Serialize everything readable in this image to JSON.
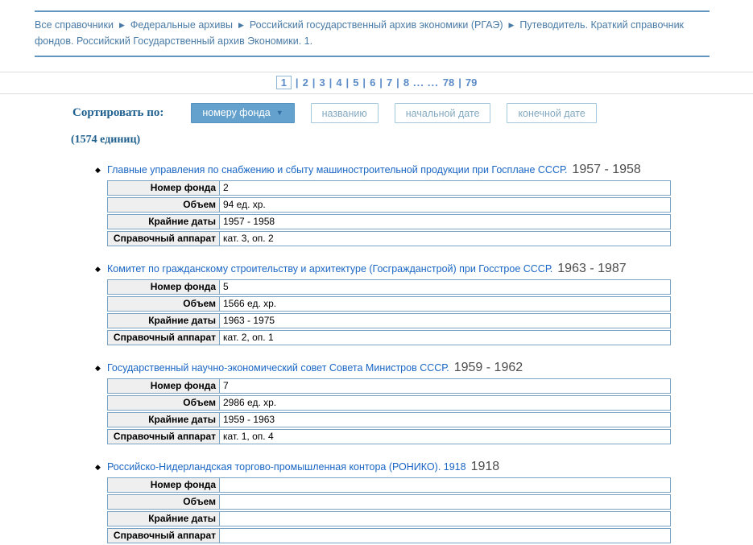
{
  "breadcrumb": {
    "separator": "▶",
    "items": [
      "Все справочники",
      "Федеральные архивы",
      "Российский государственный архив экономики (РГАЭ)",
      "Путеводитель. Краткий справочник фондов. Российский Государственный архив Экономики. 1."
    ]
  },
  "pagination": {
    "separator": "|",
    "tokens": [
      {
        "type": "page",
        "label": "1",
        "current": true
      },
      {
        "type": "sep"
      },
      {
        "type": "page",
        "label": "2"
      },
      {
        "type": "sep"
      },
      {
        "type": "page",
        "label": "3"
      },
      {
        "type": "sep"
      },
      {
        "type": "page",
        "label": "4"
      },
      {
        "type": "sep"
      },
      {
        "type": "page",
        "label": "5"
      },
      {
        "type": "sep"
      },
      {
        "type": "page",
        "label": "6"
      },
      {
        "type": "sep"
      },
      {
        "type": "page",
        "label": "7"
      },
      {
        "type": "sep"
      },
      {
        "type": "page",
        "label": "8"
      },
      {
        "type": "dots",
        "label": "..."
      },
      {
        "type": "dots",
        "label": "..."
      },
      {
        "type": "page",
        "label": "78"
      },
      {
        "type": "sep"
      },
      {
        "type": "page",
        "label": "79"
      }
    ]
  },
  "sort": {
    "label": "Сортировать по:",
    "count": "(1574 единиц)",
    "buttons": [
      {
        "label": "номеру фонда",
        "active": true,
        "arrow": "▼"
      },
      {
        "label": "названию",
        "active": false
      },
      {
        "label": "начальной дате",
        "active": false
      },
      {
        "label": "конечной дате",
        "active": false
      }
    ]
  },
  "field_labels": [
    "Номер фонда",
    "Объем",
    "Крайние даты",
    "Справочный аппарат"
  ],
  "entries": [
    {
      "title": "Главные управления по снабжению и сбыту машиностроительной продукции при Госплане СССР.",
      "date_range": "1957 - 1958",
      "values": [
        "2",
        "94 ед. хр.",
        "1957 - 1958",
        "кат. 3, оп. 2"
      ]
    },
    {
      "title": "Комитет по гражданскому строительству и архитектуре (Госгражданстрой) при Госстрое СССР.",
      "date_range": "1963 - 1987",
      "values": [
        "5",
        "1566 ед. хр.",
        "1963 - 1975",
        "кат. 2, оп. 1"
      ]
    },
    {
      "title": "Государственный научно-экономический совет Совета Министров СССР.",
      "date_range": "1959 - 1962",
      "values": [
        "7",
        "2986 ед. хр.",
        "1959 - 1963",
        "кат. 1, оп. 4"
      ]
    },
    {
      "title": "Российско-Нидерландская торгово-промышленная контора (РОНИКО). 1918",
      "date_range": "1918",
      "values": [
        "",
        "",
        "",
        ""
      ]
    }
  ],
  "colors": {
    "rule-blue": "#6296c2",
    "breadcrumb-blue": "#4a7ba6",
    "link-blue": "#1a66c4",
    "pagination-blue": "#5b8cc7",
    "btn-active-bg": "#64a1cc",
    "btn-border": "#a5c8dd",
    "btn-text": "#84a9c0",
    "table-border": "#7ba3c3",
    "label-bg": "#efefef",
    "date-gray": "#4d4d4d",
    "heading-navy": "#20608f",
    "gray-rule": "#dddddd"
  }
}
